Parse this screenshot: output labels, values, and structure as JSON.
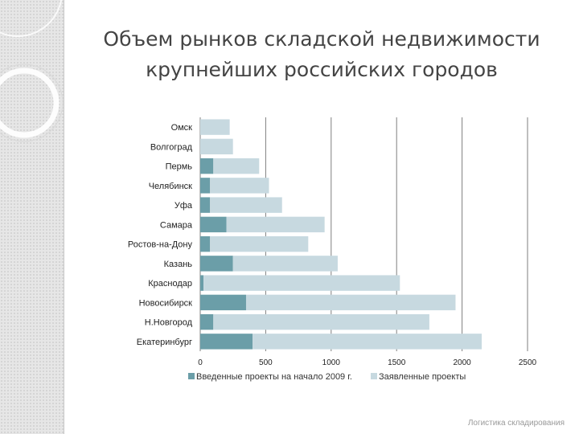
{
  "slide": {
    "title": "Объем рынков складской недвижимости крупнейших российских городов",
    "footer": "Логистика складирования"
  },
  "colors": {
    "introduced": "#6b9ea8",
    "declared": "#c7d9e0",
    "gridline": "#7f7f7f"
  },
  "chart_data": {
    "type": "bar",
    "orientation": "horizontal",
    "stacked": true,
    "categories": [
      "Омск",
      "Волгоград",
      "Пермь",
      "Челябинск",
      "Уфа",
      "Самара",
      "Ростов-на-Дону",
      "Казань",
      "Краснодар",
      "Новосибирск",
      "Н.Новгород",
      "Екатеринбург"
    ],
    "series": [
      {
        "name": "Введенные проекты на начало 2009 г.",
        "values": [
          0,
          0,
          100,
          75,
          75,
          200,
          75,
          250,
          25,
          350,
          100,
          400
        ]
      },
      {
        "name": "Заявленные проекты",
        "values": [
          225,
          250,
          350,
          450,
          550,
          750,
          750,
          800,
          1500,
          1600,
          1650,
          1750
        ]
      }
    ],
    "xlim": [
      0,
      2500
    ],
    "xticks": [
      "0",
      "500",
      "1000",
      "1500",
      "2000",
      "2500"
    ],
    "grid": true,
    "legend": "bottom"
  }
}
